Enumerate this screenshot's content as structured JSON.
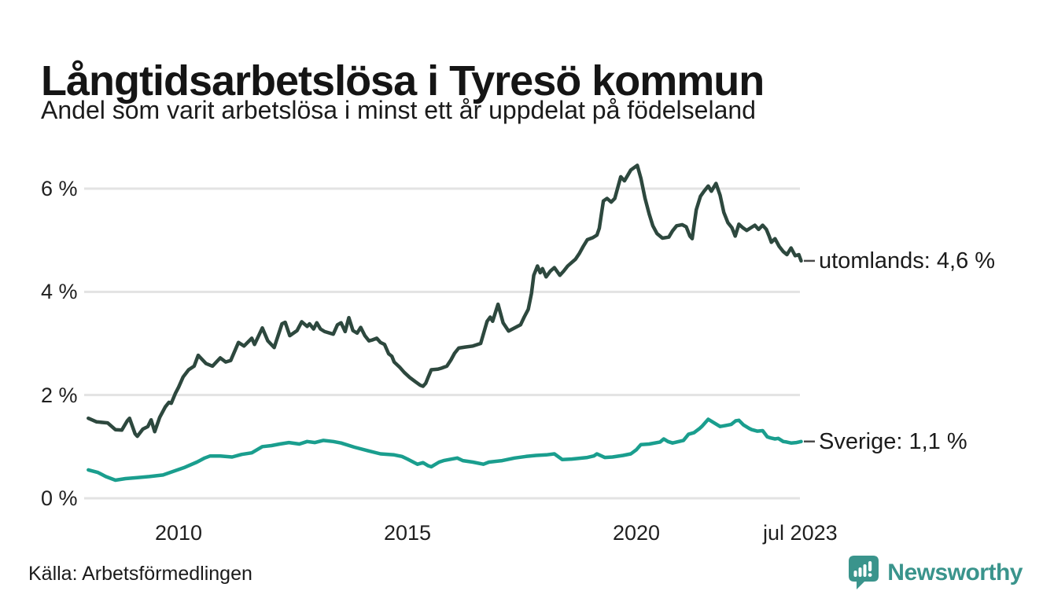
{
  "header": {
    "title": "Långtidsarbetslösa i Tyresö kommun",
    "subtitle": "Andel som varit arbetslösa i minst ett år uppdelat på födelseland"
  },
  "footer": {
    "source": "Källa: Arbetsförmedlingen",
    "brand": "Newsworthy"
  },
  "colors": {
    "utomlands_line": "#2d483e",
    "sverige_line": "#1a9e8e",
    "gridline": "#e3e3e3",
    "brand_teal": "#3a948c",
    "label_dash": "#4a4a4a"
  },
  "chart_data": {
    "type": "line",
    "title": "Långtidsarbetslösa i Tyresö kommun",
    "subtitle": "Andel som varit arbetslösa i minst ett år uppdelat på födelseland",
    "xlabel": "",
    "ylabel": "",
    "xlim": [
      2007.9,
      2023.62
    ],
    "ylim": [
      0,
      6.6
    ],
    "grid": "horizontal",
    "legend_position": "end-of-line-labels",
    "y_ticks": [
      {
        "value": 6,
        "label": "6 %"
      },
      {
        "value": 4,
        "label": "4 %"
      },
      {
        "value": 2,
        "label": "2 %"
      },
      {
        "value": 0,
        "label": "0 %"
      }
    ],
    "x_ticks": [
      {
        "value": 2010,
        "label": "2010"
      },
      {
        "value": 2015,
        "label": "2015"
      },
      {
        "value": 2020,
        "label": "2020"
      },
      {
        "value": 2023.58,
        "label": "jul 2023"
      }
    ],
    "series": [
      {
        "name": "utomlands",
        "end_label": "utomlands: 4,6 %",
        "end_value_display": "4,6 %",
        "color": "#2d483e",
        "x": [
          2008.03,
          2008.21,
          2008.45,
          2008.62,
          2008.76,
          2008.88,
          2008.93,
          2009.05,
          2009.1,
          2009.22,
          2009.33,
          2009.4,
          2009.48,
          2009.59,
          2009.71,
          2009.79,
          2009.84,
          2009.93,
          2010.0,
          2010.1,
          2010.22,
          2010.34,
          2010.43,
          2010.6,
          2010.74,
          2010.91,
          2011.03,
          2011.14,
          2011.31,
          2011.43,
          2011.6,
          2011.66,
          2011.83,
          2011.95,
          2012.09,
          2012.26,
          2012.33,
          2012.43,
          2012.59,
          2012.69,
          2012.81,
          2012.86,
          2012.95,
          2013.02,
          2013.1,
          2013.19,
          2013.38,
          2013.47,
          2013.55,
          2013.64,
          2013.72,
          2013.81,
          2013.9,
          2013.98,
          2014.07,
          2014.16,
          2014.24,
          2014.33,
          2014.41,
          2014.5,
          2014.59,
          2014.66,
          2014.71,
          2014.83,
          2014.93,
          2015.05,
          2015.17,
          2015.28,
          2015.34,
          2015.4,
          2015.45,
          2015.52,
          2015.66,
          2015.74,
          2015.86,
          2015.95,
          2016.03,
          2016.12,
          2016.26,
          2016.43,
          2016.6,
          2016.74,
          2016.81,
          2016.86,
          2016.98,
          2017.09,
          2017.21,
          2017.34,
          2017.47,
          2017.55,
          2017.64,
          2017.71,
          2017.76,
          2017.84,
          2017.9,
          2017.95,
          2018.03,
          2018.12,
          2018.21,
          2018.33,
          2018.41,
          2018.5,
          2018.59,
          2018.67,
          2018.76,
          2018.84,
          2018.93,
          2019.05,
          2019.14,
          2019.19,
          2019.28,
          2019.36,
          2019.45,
          2019.53,
          2019.66,
          2019.74,
          2019.88,
          2020.02,
          2020.1,
          2020.19,
          2020.28,
          2020.36,
          2020.45,
          2020.57,
          2020.71,
          2020.79,
          2020.88,
          2021.0,
          2021.09,
          2021.17,
          2021.22,
          2021.31,
          2021.4,
          2021.48,
          2021.57,
          2021.64,
          2021.74,
          2021.83,
          2021.91,
          2022.0,
          2022.09,
          2022.16,
          2022.24,
          2022.33,
          2022.41,
          2022.5,
          2022.59,
          2022.67,
          2022.76,
          2022.84,
          2022.9,
          2022.95,
          2023.03,
          2023.12,
          2023.21,
          2023.29,
          2023.38,
          2023.47,
          2023.55,
          2023.6
        ],
        "y": [
          1.55,
          1.48,
          1.46,
          1.33,
          1.32,
          1.5,
          1.55,
          1.25,
          1.2,
          1.34,
          1.39,
          1.52,
          1.29,
          1.57,
          1.77,
          1.86,
          1.84,
          2.03,
          2.15,
          2.35,
          2.49,
          2.56,
          2.77,
          2.61,
          2.56,
          2.72,
          2.64,
          2.67,
          3.02,
          2.95,
          3.1,
          2.98,
          3.3,
          3.05,
          2.92,
          3.38,
          3.41,
          3.15,
          3.25,
          3.42,
          3.33,
          3.38,
          3.28,
          3.4,
          3.28,
          3.23,
          3.18,
          3.36,
          3.4,
          3.23,
          3.5,
          3.25,
          3.2,
          3.31,
          3.15,
          3.05,
          3.07,
          3.1,
          3.02,
          2.98,
          2.8,
          2.75,
          2.64,
          2.54,
          2.44,
          2.34,
          2.26,
          2.19,
          2.17,
          2.23,
          2.34,
          2.49,
          2.5,
          2.52,
          2.56,
          2.68,
          2.81,
          2.91,
          2.93,
          2.95,
          3.0,
          3.43,
          3.51,
          3.43,
          3.76,
          3.4,
          3.24,
          3.3,
          3.36,
          3.51,
          3.66,
          3.97,
          4.32,
          4.5,
          4.37,
          4.45,
          4.29,
          4.4,
          4.47,
          4.32,
          4.4,
          4.5,
          4.57,
          4.63,
          4.75,
          4.88,
          5.01,
          5.05,
          5.1,
          5.23,
          5.76,
          5.81,
          5.74,
          5.81,
          6.23,
          6.15,
          6.36,
          6.45,
          6.2,
          5.81,
          5.51,
          5.28,
          5.13,
          5.04,
          5.06,
          5.18,
          5.28,
          5.3,
          5.26,
          5.08,
          5.03,
          5.59,
          5.85,
          5.95,
          6.05,
          5.95,
          6.1,
          5.87,
          5.54,
          5.34,
          5.24,
          5.08,
          5.31,
          5.24,
          5.19,
          5.24,
          5.29,
          5.21,
          5.29,
          5.21,
          5.08,
          4.96,
          5.03,
          4.88,
          4.78,
          4.72,
          4.85,
          4.7,
          4.72,
          4.6
        ]
      },
      {
        "name": "Sverige",
        "end_label": "Sverige: 1,1 %",
        "end_value_display": "1,1 %",
        "color": "#1a9e8e",
        "x": [
          2008.03,
          2008.24,
          2008.41,
          2008.62,
          2008.84,
          2009.1,
          2009.36,
          2009.66,
          2009.88,
          2010.14,
          2010.4,
          2010.57,
          2010.69,
          2010.91,
          2011.17,
          2011.38,
          2011.6,
          2011.83,
          2012.03,
          2012.21,
          2012.41,
          2012.64,
          2012.81,
          2012.98,
          2013.16,
          2013.38,
          2013.55,
          2013.84,
          2014.14,
          2014.41,
          2014.71,
          2014.88,
          2015.0,
          2015.22,
          2015.34,
          2015.45,
          2015.52,
          2015.69,
          2015.79,
          2015.97,
          2016.09,
          2016.21,
          2016.43,
          2016.66,
          2016.78,
          2017.07,
          2017.34,
          2017.59,
          2017.81,
          2018.03,
          2018.21,
          2018.38,
          2018.59,
          2018.72,
          2018.93,
          2019.07,
          2019.14,
          2019.31,
          2019.48,
          2019.71,
          2019.88,
          2020.0,
          2020.1,
          2020.28,
          2020.52,
          2020.6,
          2020.69,
          2020.79,
          2021.03,
          2021.14,
          2021.26,
          2021.38,
          2021.43,
          2021.57,
          2021.72,
          2021.83,
          2021.95,
          2022.07,
          2022.17,
          2022.24,
          2022.34,
          2022.47,
          2022.52,
          2022.64,
          2022.76,
          2022.86,
          2022.93,
          2023.03,
          2023.1,
          2023.21,
          2023.28,
          2023.38,
          2023.5,
          2023.6
        ],
        "y": [
          0.55,
          0.5,
          0.42,
          0.35,
          0.38,
          0.4,
          0.42,
          0.45,
          0.52,
          0.6,
          0.7,
          0.78,
          0.82,
          0.82,
          0.8,
          0.85,
          0.88,
          1.0,
          1.02,
          1.05,
          1.08,
          1.05,
          1.1,
          1.08,
          1.12,
          1.1,
          1.07,
          0.99,
          0.92,
          0.86,
          0.84,
          0.81,
          0.76,
          0.66,
          0.69,
          0.63,
          0.61,
          0.7,
          0.73,
          0.76,
          0.78,
          0.73,
          0.7,
          0.66,
          0.7,
          0.73,
          0.78,
          0.81,
          0.83,
          0.84,
          0.86,
          0.75,
          0.76,
          0.77,
          0.79,
          0.82,
          0.86,
          0.79,
          0.8,
          0.83,
          0.86,
          0.94,
          1.04,
          1.05,
          1.09,
          1.15,
          1.1,
          1.07,
          1.12,
          1.24,
          1.27,
          1.35,
          1.39,
          1.53,
          1.45,
          1.39,
          1.41,
          1.43,
          1.5,
          1.51,
          1.42,
          1.35,
          1.33,
          1.3,
          1.31,
          1.19,
          1.17,
          1.15,
          1.16,
          1.1,
          1.09,
          1.07,
          1.08,
          1.1
        ]
      }
    ]
  }
}
